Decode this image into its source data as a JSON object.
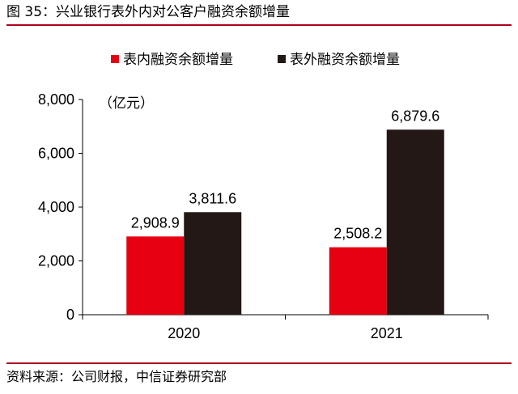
{
  "header": {
    "title": "图 35：兴业银行表外内对公客户融资余额增量"
  },
  "footer": {
    "source": "资料来源：公司财报，中信证券研究部"
  },
  "chart_data": {
    "type": "bar",
    "title": "图 35：兴业银行表外内对公客户融资余额增量",
    "ylabel": "（亿元）",
    "xlabel": "",
    "categories": [
      "2020",
      "2021"
    ],
    "series": [
      {
        "name": "表内融资余额增量",
        "color": "#e60012",
        "values": [
          2908.9,
          2508.2
        ],
        "labels": [
          "2,908.9",
          "2,508.2"
        ]
      },
      {
        "name": "表外融资余额增量",
        "color": "#231815",
        "values": [
          3811.6,
          6879.6
        ],
        "labels": [
          "3,811.6",
          "6,879.6"
        ]
      }
    ],
    "ylim": [
      0,
      8000
    ],
    "yticks": [
      0,
      2000,
      4000,
      6000,
      8000
    ],
    "ytick_labels": [
      "0",
      "2,000",
      "4,000",
      "6,000",
      "8,000"
    ],
    "grid": false,
    "legend_position": "top"
  }
}
